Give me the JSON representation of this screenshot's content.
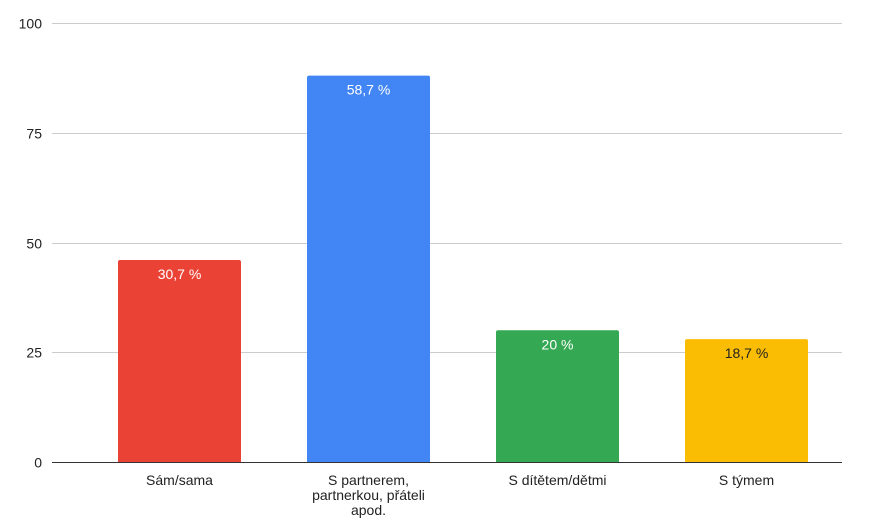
{
  "chart_data": {
    "type": "bar",
    "categories": [
      "Sám/sama",
      "S partnerem, partnerkou, přáteli apod.",
      "S dítětem/dětmi",
      "S týmem"
    ],
    "category_label_lines": [
      [
        "Sám/sama"
      ],
      [
        "S partnerem,",
        "partnerkou, přáteli",
        "apod."
      ],
      [
        "S dítětem/dětmi"
      ],
      [
        "S týmem"
      ]
    ],
    "values": [
      46,
      88,
      30,
      28
    ],
    "data_labels": [
      "30,7 %",
      "58,7 %",
      "20 %",
      "18,7 %"
    ],
    "colors": [
      "#ea4335",
      "#4285f4",
      "#34a853",
      "#fbbc04"
    ],
    "label_colors": [
      "#ffffff",
      "#ffffff",
      "#ffffff",
      "#222222"
    ],
    "ylim": [
      0,
      100
    ],
    "yticks": [
      0,
      25,
      50,
      75,
      100
    ],
    "grid": true,
    "legend": "none",
    "title": "",
    "xlabel": "",
    "ylabel": ""
  }
}
